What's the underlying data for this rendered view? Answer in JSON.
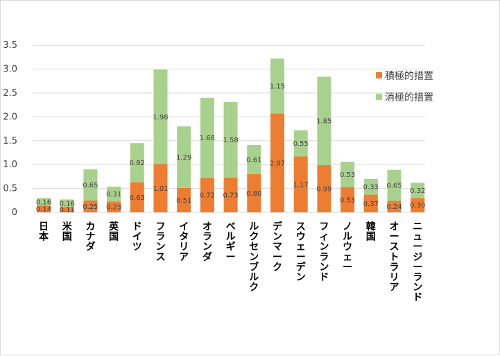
{
  "chart_data": {
    "type": "bar",
    "stacked": true,
    "categories": [
      "日本",
      "米国",
      "カナダ",
      "英国",
      "ドイツ",
      "フランス",
      "イタリア",
      "オランダ",
      "ベルギー",
      "ルクセンブルク",
      "デンマーク",
      "スウェーデン",
      "フィンランド",
      "ノルウェー",
      "韓国",
      "オーストラリア",
      "ニュージーランド"
    ],
    "series": [
      {
        "name": "積極的措置",
        "color": "#ed7d31",
        "values": [
          0.14,
          0.11,
          0.25,
          0.23,
          0.63,
          1.01,
          0.51,
          0.72,
          0.73,
          0.8,
          2.07,
          1.17,
          0.99,
          0.53,
          0.37,
          0.24,
          0.3
        ],
        "labels": [
          "0.14",
          "0.11",
          "0.25",
          "0.23",
          "0.63",
          "1.01",
          "0.51",
          "0.72",
          "0.73",
          "0.80",
          "2.07",
          "1.17",
          "0.99",
          "0.53",
          "0.37",
          "0.24",
          "0.30"
        ]
      },
      {
        "name": "消極的措置",
        "color": "#a9d18e",
        "values": [
          0.16,
          0.16,
          0.65,
          0.31,
          0.82,
          1.98,
          1.29,
          1.68,
          1.58,
          0.61,
          1.15,
          0.55,
          1.85,
          0.53,
          0.33,
          0.65,
          0.32
        ],
        "labels": [
          "0.16",
          "0.16",
          "0.65",
          "0.31",
          "0.82",
          "1.98",
          "1.29",
          "1.68",
          "1.58",
          "0.61",
          "1.15",
          "0.55",
          "1.85",
          "0.53",
          "0.33",
          "0.65",
          "0.32"
        ]
      }
    ],
    "yticks": [
      "0",
      "0.5",
      "1.0",
      "1.5",
      "2.0",
      "2.5",
      "3.0",
      "3.5"
    ],
    "ylim": [
      0,
      3.5
    ],
    "grid": true,
    "legend_position": "right",
    "title": "",
    "xlabel": "",
    "ylabel": ""
  }
}
